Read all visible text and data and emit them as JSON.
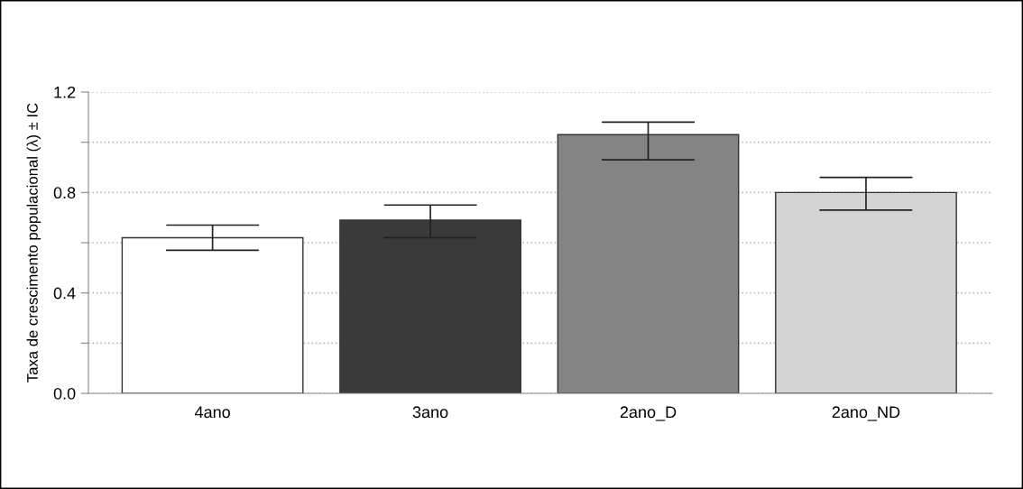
{
  "chart_data": {
    "type": "bar",
    "ylabel": "Taxa de crescimento populacional (λ) ± IC",
    "categories": [
      "4ano",
      "3ano",
      "2ano_D",
      "2ano_ND"
    ],
    "values": [
      0.62,
      0.69,
      1.03,
      0.8
    ],
    "colors": [
      "#ffffff",
      "#3a3a3a",
      "#848484",
      "#d4d4d4"
    ],
    "errors": [
      [
        0.57,
        0.67
      ],
      [
        0.62,
        0.75
      ],
      [
        0.93,
        1.08
      ],
      [
        0.73,
        0.86
      ]
    ],
    "ylim": [
      0,
      1.2
    ],
    "yticks": [
      {
        "value": 0,
        "label": "0.0"
      },
      {
        "value": 0.2,
        "label": null
      },
      0.4,
      {
        "value": 0.6,
        "label": null
      },
      0.8,
      {
        "value": 1.0,
        "label": null
      },
      1.2
    ],
    "grid": "y"
  }
}
